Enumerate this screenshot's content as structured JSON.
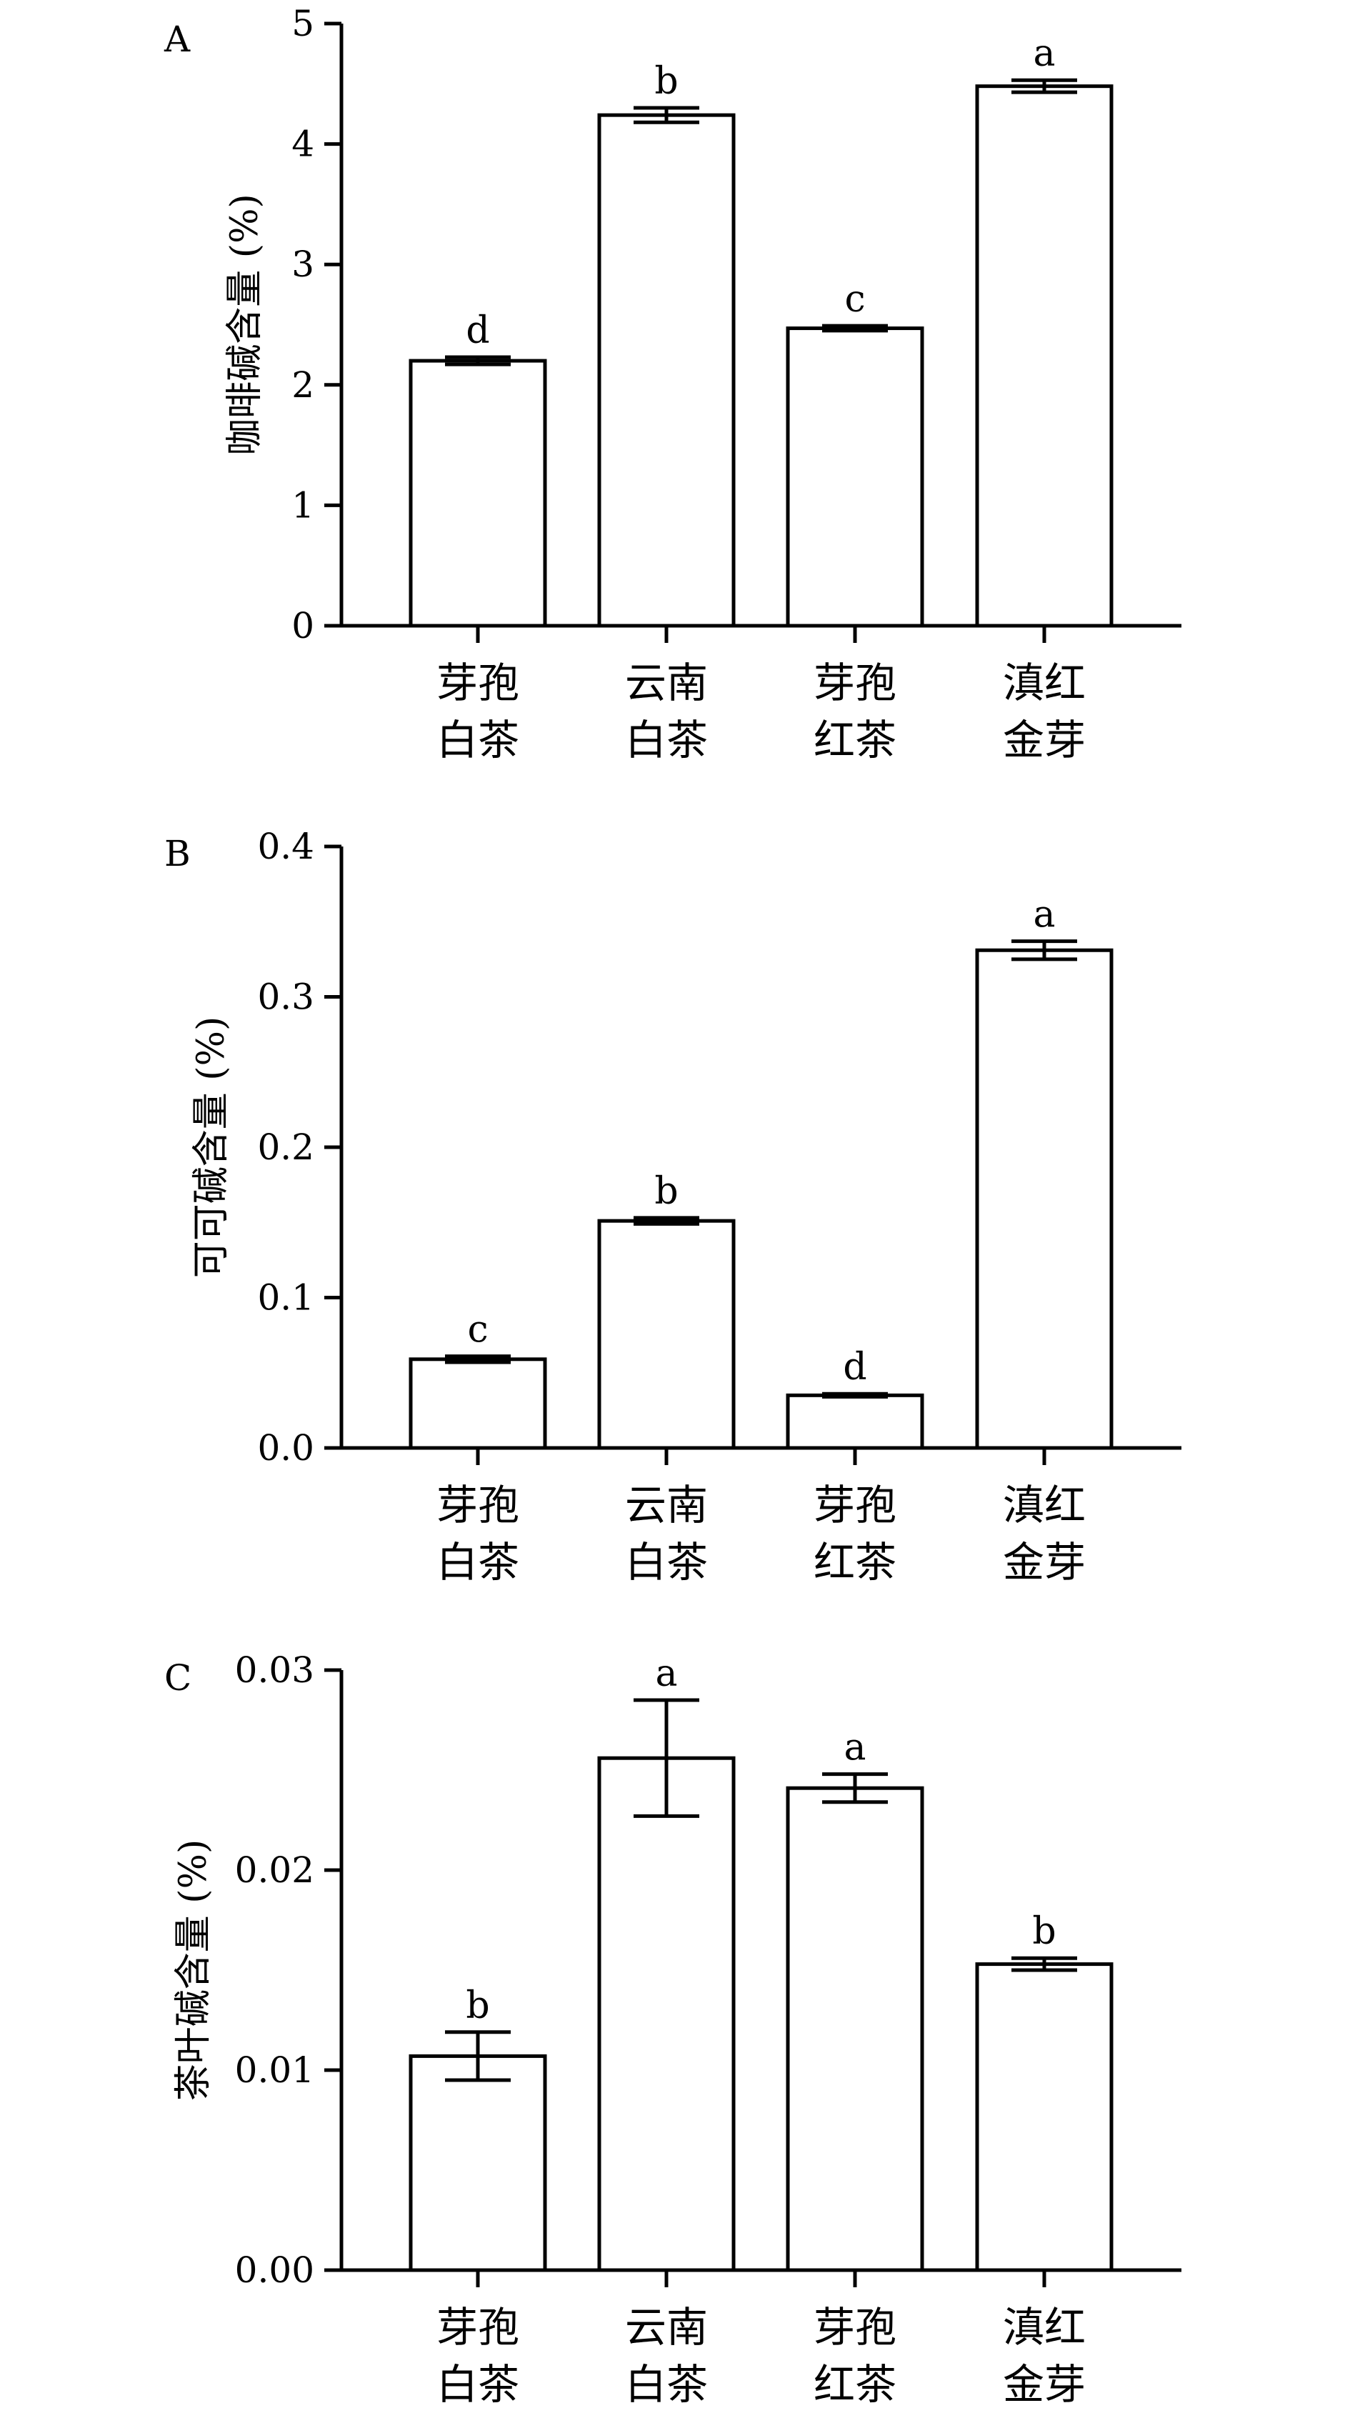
{
  "chart_data": [
    {
      "panel_label": "A",
      "type": "bar",
      "categories": [
        [
          "芽孢",
          "白茶"
        ],
        [
          "云南",
          "白茶"
        ],
        [
          "芽孢",
          "红茶"
        ],
        [
          "滇红",
          "金芽"
        ]
      ],
      "values": [
        2.2,
        4.24,
        2.47,
        4.48
      ],
      "errors": [
        0.03,
        0.06,
        0.02,
        0.05
      ],
      "significance": [
        "d",
        "b",
        "c",
        "a"
      ],
      "ylabel": "咖啡碱含量 (%)",
      "ylim": [
        0,
        5
      ],
      "yticks": [
        "0",
        "1",
        "2",
        "3",
        "4",
        "5"
      ],
      "ytick_values": [
        0,
        1,
        2,
        3,
        4,
        5
      ],
      "grid": false
    },
    {
      "panel_label": "B",
      "type": "bar",
      "categories": [
        [
          "芽孢",
          "白茶"
        ],
        [
          "云南",
          "白茶"
        ],
        [
          "芽孢",
          "红茶"
        ],
        [
          "滇红",
          "金芽"
        ]
      ],
      "values": [
        0.059,
        0.151,
        0.035,
        0.331
      ],
      "errors": [
        0.002,
        0.002,
        0.001,
        0.006
      ],
      "significance": [
        "c",
        "b",
        "d",
        "a"
      ],
      "ylabel": "可可碱含量 (%)",
      "ylim": [
        0,
        0.4
      ],
      "yticks": [
        "0.0",
        "0.1",
        "0.2",
        "0.3",
        "0.4"
      ],
      "ytick_values": [
        0,
        0.1,
        0.2,
        0.3,
        0.4
      ],
      "grid": false
    },
    {
      "panel_label": "C",
      "type": "bar",
      "categories": [
        [
          "芽孢",
          "白茶"
        ],
        [
          "云南",
          "白茶"
        ],
        [
          "芽孢",
          "红茶"
        ],
        [
          "滇红",
          "金芽"
        ]
      ],
      "values": [
        0.0107,
        0.0256,
        0.0241,
        0.0153
      ],
      "errors": [
        0.0012,
        0.0029,
        0.0007,
        0.0003
      ],
      "significance": [
        "b",
        "a",
        "a",
        "b"
      ],
      "ylabel": "茶叶碱含量 (%)",
      "ylim": [
        0,
        0.03
      ],
      "yticks": [
        "0.00",
        "0.01",
        "0.02",
        "0.03"
      ],
      "ytick_values": [
        0,
        0.01,
        0.02,
        0.03
      ],
      "grid": false
    }
  ],
  "colors": {
    "bar_fill": "#ffffff",
    "stroke": "#000000"
  }
}
